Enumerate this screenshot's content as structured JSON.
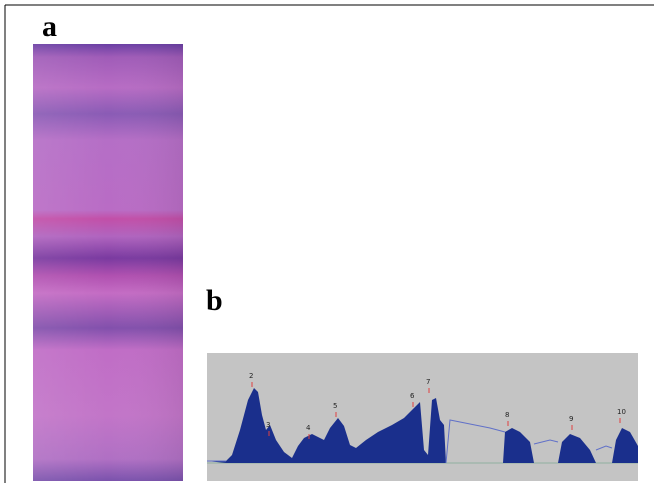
{
  "panels": [
    {
      "label": "a"
    },
    {
      "label": "b"
    }
  ],
  "peak_labels": [
    "2",
    "3",
    "4",
    "5",
    "6",
    "7",
    "8",
    "9",
    "10"
  ]
}
